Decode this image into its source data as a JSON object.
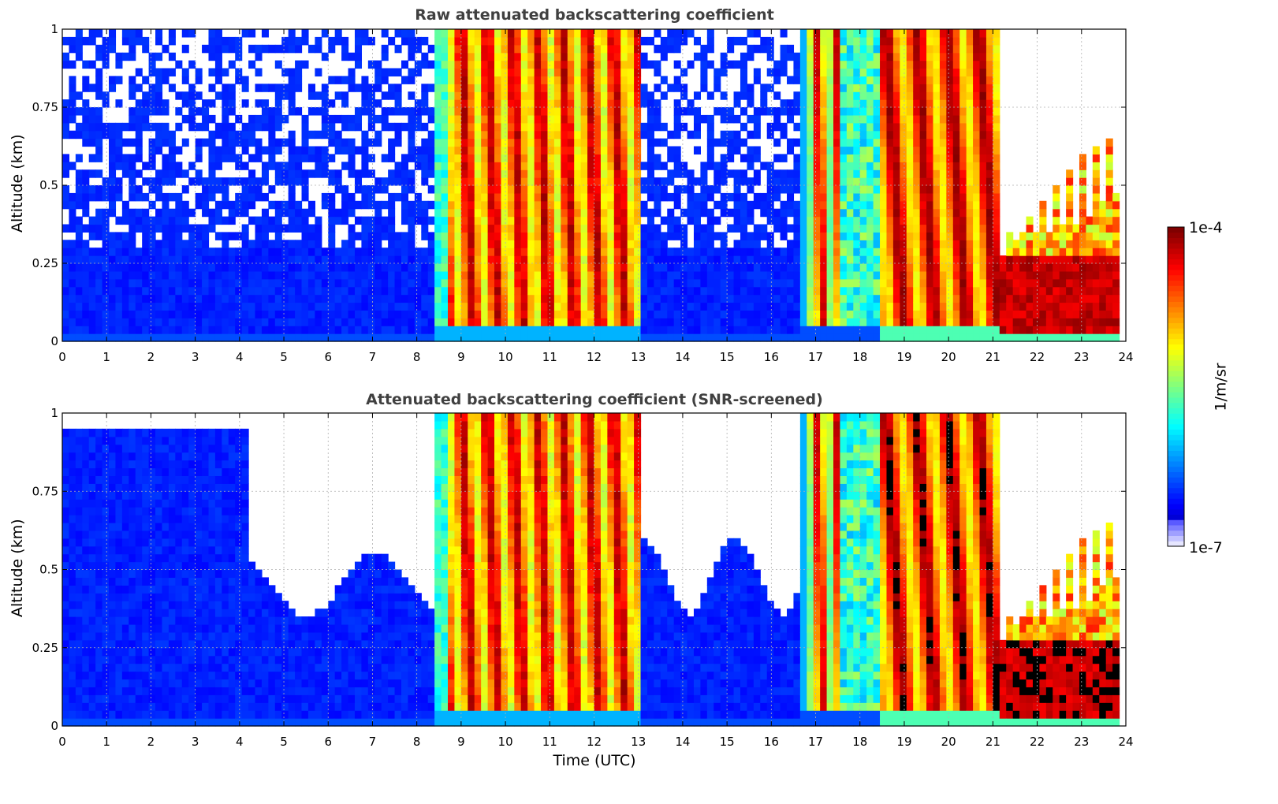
{
  "chart_data": [
    {
      "type": "heatmap",
      "title": "Raw attenuated backscattering coefficient",
      "xlabel": "",
      "ylabel": "Altitude (km)",
      "xlim": [
        0,
        24
      ],
      "ylim": [
        0,
        1
      ],
      "x_ticks": [
        "0",
        "1",
        "2",
        "3",
        "4",
        "5",
        "6",
        "7",
        "8",
        "9",
        "10",
        "11",
        "12",
        "13",
        "14",
        "15",
        "16",
        "17",
        "18",
        "19",
        "20",
        "21",
        "22",
        "23",
        "24"
      ],
      "y_ticks": [
        "0",
        "0.25",
        "0.5",
        "0.75",
        "1"
      ],
      "grid": true,
      "colorbar_label": "1/m/sr",
      "colorbar_range": [
        "1e-7",
        "1e-4"
      ],
      "log_scale_color": true,
      "segments": [
        {
          "from": 0.0,
          "to": 8.3,
          "description_level": "low"
        },
        {
          "from": 8.3,
          "to": 13.1,
          "description_level": "high"
        },
        {
          "from": 13.1,
          "to": 16.6,
          "description_level": "low"
        },
        {
          "from": 16.6,
          "to": 18.5,
          "description_level": "high"
        },
        {
          "from": 18.5,
          "to": 21.1,
          "description_level": "very-high"
        },
        {
          "from": 21.1,
          "to": 23.8,
          "description_level": "very-high-low-layer"
        }
      ]
    },
    {
      "type": "heatmap",
      "title": "Attenuated backscattering coefficient (SNR-screened)",
      "xlabel": "Time (UTC)",
      "ylabel": "Altitude (km)",
      "xlim": [
        0,
        24
      ],
      "ylim": [
        0,
        1
      ],
      "x_ticks": [
        "0",
        "1",
        "2",
        "3",
        "4",
        "5",
        "6",
        "7",
        "8",
        "9",
        "10",
        "11",
        "12",
        "13",
        "14",
        "15",
        "16",
        "17",
        "18",
        "19",
        "20",
        "21",
        "22",
        "23",
        "24"
      ],
      "y_ticks": [
        "0",
        "0.25",
        "0.5",
        "0.75",
        "1"
      ],
      "grid": true,
      "colorbar_label": "1/m/sr",
      "colorbar_range": [
        "1e-7",
        "1e-4"
      ],
      "log_scale_color": true
    }
  ],
  "colorbar": {
    "top_label": "1e-4",
    "bottom_label": "1e-7",
    "unit_label": "1/m/sr"
  }
}
